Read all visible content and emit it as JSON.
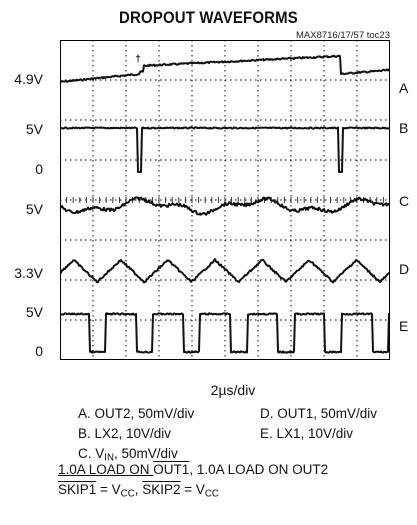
{
  "chart_data": {
    "type": "line",
    "title": "DROPOUT WAVEFORMS",
    "figure_ref": "MAX8716/17/57 toc23",
    "xlabel": "2µs/div",
    "grid": "10 x 8 scope graticule, dotted",
    "left_labels": [
      "4.9V",
      "5V",
      "0",
      "5V",
      "3.3V",
      "5V",
      "0"
    ],
    "series": [
      {
        "name": "A",
        "description": "A. OUT2, 50mV/div",
        "shape": "sawtooth ramp with step at ~2.4 and ~8.1 div"
      },
      {
        "name": "B",
        "description": "B. LX2, 10V/div",
        "shape": "high with narrow low pulses at ~2.4 and ~8.1 div"
      },
      {
        "name": "C",
        "description": "C. VIN, 50mV/div",
        "shape": "noisy small ripple"
      },
      {
        "name": "D",
        "description": "D. OUT1, 50mV/div",
        "shape": "triangle ripple, ~7 cycles"
      },
      {
        "name": "E",
        "description": "E. LX1, 10V/div",
        "shape": "high with low pulses, ~7 cycles"
      }
    ]
  },
  "labels": {
    "left": [
      "4.9V",
      "5V",
      "0",
      "5V",
      "3.3V",
      "5V",
      "0"
    ],
    "right": [
      "A",
      "B",
      "C",
      "D",
      "E"
    ]
  },
  "timebase": "2µs/div",
  "legend": {
    "a": "A. OUT2, 50mV/div",
    "b": "B. LX2, 10V/div",
    "c_prefix": "C. V",
    "c_sub": "IN",
    "c_suffix": ", 50mV/div",
    "d": "D. OUT1, 50mV/div",
    "e": "E. LX1, 10V/div"
  },
  "footer": {
    "line1_a": "1.0A LOAD ON ",
    "line1_b": "OUT1",
    "line1_c": ", 1.0A LOAD ON OUT2",
    "skip1": "SKIP1",
    "eq1": " = V",
    "cc1": "CC",
    "comma": ", ",
    "skip2": "SKIP2",
    "eq2": " = V",
    "cc2": "CC"
  },
  "colors": {
    "trace": "#111111",
    "frame": "#000000",
    "grid": "#333333"
  }
}
